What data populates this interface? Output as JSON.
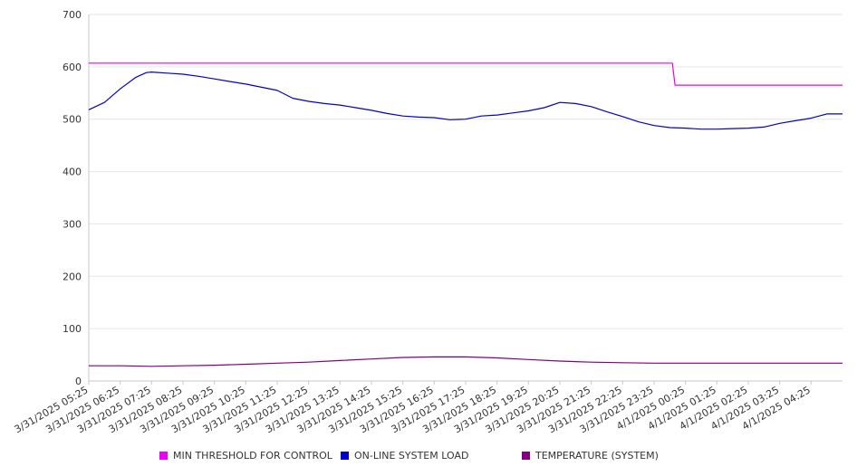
{
  "chart_data": {
    "type": "line",
    "ylim": [
      0,
      700
    ],
    "yticks": [
      "0",
      "100",
      "200",
      "300",
      "400",
      "500",
      "600",
      "700"
    ],
    "xticks": [
      "3/31/2025 05:25",
      "3/31/2025 06:25",
      "3/31/2025 07:25",
      "3/31/2025 08:25",
      "3/31/2025 09:25",
      "3/31/2025 10:25",
      "3/31/2025 11:25",
      "3/31/2025 12:25",
      "3/31/2025 13:25",
      "3/31/2025 14:25",
      "3/31/2025 15:25",
      "3/31/2025 16:25",
      "3/31/2025 17:25",
      "3/31/2025 18:25",
      "3/31/2025 19:25",
      "3/31/2025 20:25",
      "3/31/2025 21:25",
      "3/31/2025 22:25",
      "3/31/2025 23:25",
      "4/1/2025 00:25",
      "4/1/2025 01:25",
      "4/1/2025 02:25",
      "4/1/2025 03:25",
      "4/1/2025 04:25"
    ],
    "series": [
      {
        "name": "MIN THRESHOLD FOR CONTROL",
        "color": "#ee00ee",
        "step": true,
        "points": [
          [
            "3/31/2025 05:25",
            607
          ],
          [
            "4/1/2025 00:00",
            607
          ],
          [
            "4/1/2025 00:05",
            565
          ],
          [
            "4/1/2025 05:25",
            565
          ]
        ]
      },
      {
        "name": "ON-LINE SYSTEM LOAD",
        "color": "#0000cc",
        "points": [
          [
            "3/31/2025 05:25",
            518
          ],
          [
            "3/31/2025 05:55",
            532
          ],
          [
            "3/31/2025 06:25",
            558
          ],
          [
            "3/31/2025 06:55",
            580
          ],
          [
            "3/31/2025 07:15",
            589
          ],
          [
            "3/31/2025 07:25",
            590
          ],
          [
            "3/31/2025 07:55",
            588
          ],
          [
            "3/31/2025 08:25",
            586
          ],
          [
            "3/31/2025 08:55",
            582
          ],
          [
            "3/31/2025 09:25",
            577
          ],
          [
            "3/31/2025 09:55",
            572
          ],
          [
            "3/31/2025 10:25",
            567
          ],
          [
            "3/31/2025 10:55",
            561
          ],
          [
            "3/31/2025 11:25",
            555
          ],
          [
            "3/31/2025 11:55",
            540
          ],
          [
            "3/31/2025 12:25",
            534
          ],
          [
            "3/31/2025 12:55",
            530
          ],
          [
            "3/31/2025 13:25",
            527
          ],
          [
            "3/31/2025 13:55",
            522
          ],
          [
            "3/31/2025 14:25",
            517
          ],
          [
            "3/31/2025 14:55",
            511
          ],
          [
            "3/31/2025 15:25",
            506
          ],
          [
            "3/31/2025 15:55",
            504
          ],
          [
            "3/31/2025 16:25",
            503
          ],
          [
            "3/31/2025 16:55",
            499
          ],
          [
            "3/31/2025 17:25",
            500
          ],
          [
            "3/31/2025 17:55",
            506
          ],
          [
            "3/31/2025 18:25",
            508
          ],
          [
            "3/31/2025 18:55",
            512
          ],
          [
            "3/31/2025 19:25",
            516
          ],
          [
            "3/31/2025 19:55",
            522
          ],
          [
            "3/31/2025 20:25",
            532
          ],
          [
            "3/31/2025 20:55",
            530
          ],
          [
            "3/31/2025 21:25",
            524
          ],
          [
            "3/31/2025 21:55",
            514
          ],
          [
            "3/31/2025 22:25",
            505
          ],
          [
            "3/31/2025 22:55",
            495
          ],
          [
            "3/31/2025 23:25",
            488
          ],
          [
            "3/31/2025 23:55",
            484
          ],
          [
            "4/1/2025 00:25",
            483
          ],
          [
            "4/1/2025 00:55",
            481
          ],
          [
            "4/1/2025 01:25",
            481
          ],
          [
            "4/1/2025 01:55",
            482
          ],
          [
            "4/1/2025 02:25",
            483
          ],
          [
            "4/1/2025 02:55",
            485
          ],
          [
            "4/1/2025 03:25",
            492
          ],
          [
            "4/1/2025 03:55",
            497
          ],
          [
            "4/1/2025 04:25",
            502
          ],
          [
            "4/1/2025 04:55",
            510
          ],
          [
            "4/1/2025 05:25",
            510
          ]
        ]
      },
      {
        "name": "TEMPERATURE (SYSTEM)",
        "color": "#800080",
        "points": [
          [
            "3/31/2025 05:25",
            29
          ],
          [
            "3/31/2025 06:25",
            29
          ],
          [
            "3/31/2025 07:25",
            28
          ],
          [
            "3/31/2025 08:25",
            29
          ],
          [
            "3/31/2025 09:25",
            30
          ],
          [
            "3/31/2025 10:25",
            32
          ],
          [
            "3/31/2025 11:25",
            34
          ],
          [
            "3/31/2025 12:25",
            36
          ],
          [
            "3/31/2025 13:25",
            39
          ],
          [
            "3/31/2025 14:25",
            42
          ],
          [
            "3/31/2025 15:25",
            45
          ],
          [
            "3/31/2025 16:25",
            46
          ],
          [
            "3/31/2025 17:25",
            46
          ],
          [
            "3/31/2025 18:25",
            44
          ],
          [
            "3/31/2025 19:25",
            41
          ],
          [
            "3/31/2025 20:25",
            38
          ],
          [
            "3/31/2025 21:25",
            36
          ],
          [
            "3/31/2025 22:25",
            35
          ],
          [
            "3/31/2025 23:25",
            34
          ],
          [
            "4/1/2025 00:25",
            34
          ],
          [
            "4/1/2025 01:25",
            34
          ],
          [
            "4/1/2025 02:25",
            34
          ],
          [
            "4/1/2025 03:25",
            34
          ],
          [
            "4/1/2025 04:25",
            34
          ],
          [
            "4/1/2025 05:25",
            34
          ]
        ]
      }
    ],
    "grid": true,
    "legend": "bottom"
  }
}
